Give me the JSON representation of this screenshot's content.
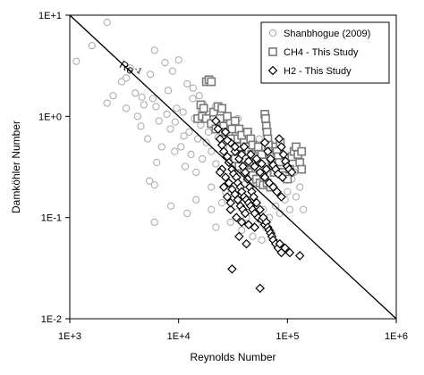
{
  "chart_data": {
    "type": "scatter",
    "x_scale": "log",
    "y_scale": "log",
    "xlabel": "Reynolds Number",
    "ylabel": "Damköhler Number",
    "xlim": [
      1000,
      1000000
    ],
    "ylim": [
      0.01,
      10
    ],
    "x_tick_labels": [
      "1E+3",
      "1E+4",
      "1E+5",
      "1E+6"
    ],
    "y_tick_labels": [
      "1E-2",
      "1E-1",
      "1E+0",
      "1E+1"
    ],
    "grid": false,
    "legend_position": "top-right",
    "reference_line": {
      "label": "Re-1",
      "label_base": "Re",
      "label_exp": "-1",
      "from": [
        1000,
        10
      ],
      "to": [
        1000000,
        0.01
      ]
    },
    "series": [
      {
        "name": "Shanbhogue (2009)",
        "marker": "circle",
        "color": "#a8a8a8",
        "points": [
          [
            1150,
            3.5
          ],
          [
            1600,
            5.0
          ],
          [
            2200,
            8.5
          ],
          [
            2500,
            1.6
          ],
          [
            3000,
            2.2
          ],
          [
            3300,
            1.2
          ],
          [
            3600,
            3.0
          ],
          [
            4000,
            1.7
          ],
          [
            4200,
            1.0
          ],
          [
            4500,
            0.8
          ],
          [
            4800,
            1.3
          ],
          [
            5200,
            0.6
          ],
          [
            5500,
            2.6
          ],
          [
            5800,
            1.5
          ],
          [
            6000,
            4.5
          ],
          [
            6300,
            0.35
          ],
          [
            6600,
            0.9
          ],
          [
            7000,
            0.5
          ],
          [
            7500,
            3.4
          ],
          [
            8000,
            1.8
          ],
          [
            8400,
            0.75
          ],
          [
            8800,
            2.8
          ],
          [
            9200,
            0.45
          ],
          [
            9600,
            1.2
          ],
          [
            10000,
            3.6
          ],
          [
            10500,
            0.5
          ],
          [
            11000,
            1.1
          ],
          [
            11500,
            0.32
          ],
          [
            12000,
            2.1
          ],
          [
            12500,
            0.7
          ],
          [
            13000,
            0.42
          ],
          [
            13500,
            1.5
          ],
          [
            14000,
            0.95
          ],
          [
            14500,
            0.28
          ],
          [
            15000,
            0.6
          ],
          [
            15500,
            1.6
          ],
          [
            16000,
            0.82
          ],
          [
            16500,
            0.38
          ],
          [
            17000,
            1.3
          ],
          [
            18000,
            0.55
          ],
          [
            19000,
            1.05
          ],
          [
            20000,
            0.45
          ],
          [
            21000,
            0.75
          ],
          [
            22000,
            0.34
          ],
          [
            23000,
            0.62
          ],
          [
            24000,
            0.9
          ],
          [
            25000,
            0.27
          ],
          [
            26000,
            0.5
          ],
          [
            27000,
            0.72
          ],
          [
            28000,
            0.4
          ],
          [
            30000,
            0.6
          ],
          [
            32000,
            0.3
          ],
          [
            34000,
            0.46
          ],
          [
            36000,
            0.68
          ],
          [
            38000,
            0.24
          ],
          [
            40000,
            0.38
          ],
          [
            42000,
            0.55
          ],
          [
            45000,
            0.3
          ],
          [
            48000,
            0.44
          ],
          [
            52000,
            0.22
          ],
          [
            56000,
            0.34
          ],
          [
            60000,
            0.5
          ],
          [
            65000,
            0.27
          ],
          [
            70000,
            0.4
          ],
          [
            75000,
            0.2
          ],
          [
            80000,
            0.3
          ],
          [
            90000,
            0.26
          ],
          [
            100000,
            0.18
          ],
          [
            110000,
            0.24
          ],
          [
            120000,
            0.16
          ],
          [
            130000,
            0.2
          ],
          [
            5400,
            0.23
          ],
          [
            6000,
            0.21
          ],
          [
            6000,
            0.09
          ],
          [
            8500,
            0.13
          ],
          [
            12000,
            0.11
          ],
          [
            14500,
            0.15
          ],
          [
            20000,
            0.12
          ],
          [
            22000,
            0.08
          ],
          [
            25000,
            0.14
          ],
          [
            30000,
            0.09
          ],
          [
            33000,
            0.13
          ],
          [
            38000,
            0.075
          ],
          [
            42000,
            0.1
          ],
          [
            48000,
            0.065
          ],
          [
            52000,
            0.085
          ],
          [
            58000,
            0.06
          ],
          [
            63000,
            0.08
          ],
          [
            68000,
            0.1
          ],
          [
            72000,
            0.07
          ],
          [
            78000,
            0.13
          ],
          [
            85000,
            0.11
          ],
          [
            95000,
            0.15
          ],
          [
            105000,
            0.12
          ],
          [
            140000,
            0.12
          ],
          [
            2200,
            1.35
          ],
          [
            3300,
            2.4
          ],
          [
            4600,
            1.55
          ],
          [
            6200,
            1.25
          ],
          [
            7800,
            1.05
          ],
          [
            9300,
            0.88
          ],
          [
            11200,
            0.64
          ],
          [
            13600,
            1.9
          ],
          [
            16200,
            1.15
          ],
          [
            18800,
            0.7
          ],
          [
            21800,
            1.25
          ],
          [
            26000,
            0.95
          ],
          [
            29000,
            0.8
          ],
          [
            35000,
            0.95
          ],
          [
            44000,
            0.7
          ],
          [
            55000,
            0.6
          ],
          [
            68000,
            0.55
          ],
          [
            82000,
            0.42
          ],
          [
            98000,
            0.35
          ],
          [
            116000,
            0.28
          ],
          [
            20000,
            0.2
          ],
          [
            27000,
            0.18
          ],
          [
            36000,
            0.16
          ],
          [
            46000,
            0.14
          ],
          [
            60000,
            0.12
          ]
        ]
      },
      {
        "name": "CH4 - This Study",
        "marker": "square",
        "color": "#7a7a7a",
        "points": [
          [
            18000,
            2.2
          ],
          [
            19000,
            2.3
          ],
          [
            20000,
            2.2
          ],
          [
            16000,
            1.3
          ],
          [
            17000,
            1.2
          ],
          [
            15000,
            0.95
          ],
          [
            16500,
            1.0
          ],
          [
            18000,
            0.95
          ],
          [
            20000,
            0.85
          ],
          [
            22000,
            0.75
          ],
          [
            21000,
            1.1
          ],
          [
            23000,
            1.25
          ],
          [
            24000,
            0.95
          ],
          [
            25000,
            1.2
          ],
          [
            26000,
            0.8
          ],
          [
            27000,
            0.7
          ],
          [
            28000,
            1.0
          ],
          [
            29000,
            0.65
          ],
          [
            30000,
            0.85
          ],
          [
            31000,
            0.75
          ],
          [
            32000,
            0.55
          ],
          [
            33000,
            0.9
          ],
          [
            34000,
            0.6
          ],
          [
            35000,
            0.45
          ],
          [
            36000,
            0.75
          ],
          [
            37000,
            0.5
          ],
          [
            38000,
            0.65
          ],
          [
            39000,
            0.42
          ],
          [
            40000,
            0.55
          ],
          [
            41000,
            0.38
          ],
          [
            42000,
            0.5
          ],
          [
            43000,
            0.7
          ],
          [
            44000,
            0.45
          ],
          [
            45000,
            0.35
          ],
          [
            46000,
            0.6
          ],
          [
            47000,
            0.42
          ],
          [
            48000,
            0.52
          ],
          [
            49000,
            0.3
          ],
          [
            50000,
            0.4
          ],
          [
            52000,
            0.35
          ],
          [
            54000,
            0.5
          ],
          [
            56000,
            0.3
          ],
          [
            58000,
            0.42
          ],
          [
            60000,
            0.27
          ],
          [
            62000,
            1.05
          ],
          [
            63000,
            0.95
          ],
          [
            64000,
            0.8
          ],
          [
            65000,
            0.7
          ],
          [
            66000,
            0.6
          ],
          [
            67000,
            0.52
          ],
          [
            68000,
            0.45
          ],
          [
            70000,
            0.4
          ],
          [
            72000,
            0.35
          ],
          [
            74000,
            0.32
          ],
          [
            76000,
            0.28
          ],
          [
            78000,
            0.5
          ],
          [
            80000,
            0.45
          ],
          [
            82000,
            0.4
          ],
          [
            84000,
            0.35
          ],
          [
            86000,
            0.55
          ],
          [
            88000,
            0.3
          ],
          [
            90000,
            0.28
          ],
          [
            95000,
            0.26
          ],
          [
            100000,
            0.24
          ],
          [
            105000,
            0.3
          ],
          [
            110000,
            0.4
          ],
          [
            115000,
            0.45
          ],
          [
            120000,
            0.5
          ],
          [
            125000,
            0.42
          ],
          [
            130000,
            0.35
          ],
          [
            135000,
            0.3
          ],
          [
            135000,
            0.45
          ],
          [
            30000,
            0.6
          ],
          [
            33000,
            0.38
          ],
          [
            36000,
            0.32
          ],
          [
            40000,
            0.3
          ],
          [
            44000,
            0.28
          ],
          [
            48000,
            0.26
          ],
          [
            52000,
            0.24
          ],
          [
            56000,
            0.22
          ],
          [
            60000,
            0.21
          ],
          [
            65000,
            0.22
          ],
          [
            70000,
            0.2
          ]
        ]
      },
      {
        "name": "H2 - This Study",
        "marker": "diamond",
        "color": "#000000",
        "points": [
          [
            22000,
            0.9
          ],
          [
            23000,
            0.75
          ],
          [
            24000,
            0.6
          ],
          [
            25000,
            0.52
          ],
          [
            26000,
            0.45
          ],
          [
            27000,
            0.7
          ],
          [
            28000,
            0.4
          ],
          [
            29000,
            0.35
          ],
          [
            30000,
            0.55
          ],
          [
            31000,
            0.3
          ],
          [
            32000,
            0.27
          ],
          [
            33000,
            0.45
          ],
          [
            34000,
            0.25
          ],
          [
            35000,
            0.22
          ],
          [
            36000,
            0.38
          ],
          [
            37000,
            0.2
          ],
          [
            38000,
            0.18
          ],
          [
            39000,
            0.32
          ],
          [
            40000,
            0.16
          ],
          [
            41000,
            0.28
          ],
          [
            42000,
            0.15
          ],
          [
            43000,
            0.24
          ],
          [
            44000,
            0.14
          ],
          [
            45000,
            0.2
          ],
          [
            46000,
            0.13
          ],
          [
            47000,
            0.18
          ],
          [
            48000,
            0.12
          ],
          [
            49000,
            0.16
          ],
          [
            50000,
            0.11
          ],
          [
            52000,
            0.14
          ],
          [
            54000,
            0.1
          ],
          [
            56000,
            0.12
          ],
          [
            58000,
            0.095
          ],
          [
            60000,
            0.1
          ],
          [
            62000,
            0.085
          ],
          [
            64000,
            0.09
          ],
          [
            66000,
            0.08
          ],
          [
            68000,
            0.075
          ],
          [
            70000,
            0.07
          ],
          [
            72000,
            0.065
          ],
          [
            74000,
            0.06
          ],
          [
            78000,
            0.055
          ],
          [
            82000,
            0.05
          ],
          [
            85000,
            0.055
          ],
          [
            88000,
            0.045
          ],
          [
            95000,
            0.05
          ],
          [
            105000,
            0.045
          ],
          [
            130000,
            0.042
          ],
          [
            31000,
            0.031
          ],
          [
            56000,
            0.02
          ],
          [
            36000,
            0.065
          ],
          [
            42000,
            0.055
          ],
          [
            25000,
            0.3
          ],
          [
            27000,
            0.25
          ],
          [
            29000,
            0.22
          ],
          [
            31000,
            0.19
          ],
          [
            33000,
            0.17
          ],
          [
            35000,
            0.15
          ],
          [
            37000,
            0.13
          ],
          [
            39000,
            0.12
          ],
          [
            41000,
            0.11
          ],
          [
            30000,
            0.12
          ],
          [
            34000,
            0.1
          ],
          [
            38000,
            0.09
          ],
          [
            44000,
            0.085
          ],
          [
            50000,
            0.08
          ],
          [
            24000,
            0.28
          ],
          [
            26000,
            0.2
          ],
          [
            28000,
            0.16
          ],
          [
            30000,
            0.14
          ],
          [
            28000,
            0.58
          ],
          [
            33000,
            0.5
          ],
          [
            38000,
            0.42
          ],
          [
            44000,
            0.36
          ],
          [
            50000,
            0.32
          ],
          [
            56000,
            0.28
          ],
          [
            62000,
            0.25
          ],
          [
            68000,
            0.22
          ],
          [
            74000,
            0.2
          ],
          [
            80000,
            0.18
          ],
          [
            88000,
            0.16
          ],
          [
            62000,
            0.55
          ],
          [
            66000,
            0.45
          ],
          [
            70000,
            0.38
          ],
          [
            74000,
            0.33
          ],
          [
            78000,
            0.3
          ],
          [
            82000,
            0.27
          ],
          [
            90000,
            0.25
          ],
          [
            84000,
            0.6
          ],
          [
            88000,
            0.5
          ],
          [
            92000,
            0.42
          ],
          [
            96000,
            0.36
          ],
          [
            100000,
            0.32
          ],
          [
            104000,
            0.3
          ],
          [
            110000,
            0.28
          ],
          [
            40000,
            0.5
          ],
          [
            46000,
            0.42
          ],
          [
            52000,
            0.38
          ],
          [
            58000,
            0.34
          ],
          [
            64000,
            0.3
          ]
        ]
      }
    ]
  }
}
